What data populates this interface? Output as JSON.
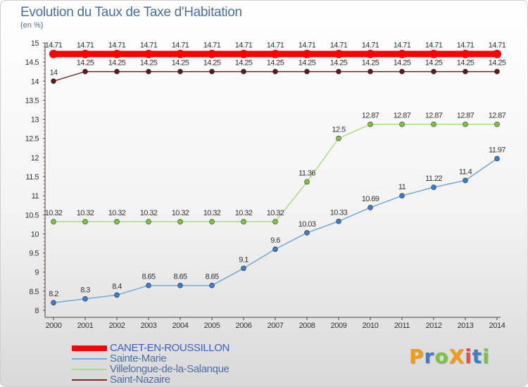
{
  "title": "Evolution du Taux de Taxe d'Habitation",
  "subtitle": "(en %)",
  "logo": {
    "text": "ProXiti",
    "letters": [
      {
        "ch": "P",
        "color": "#f39c12"
      },
      {
        "ch": "r",
        "color": "#3a7dc9"
      },
      {
        "ch": "o",
        "color": "#7cc242"
      },
      {
        "ch": "X",
        "color": "#f39c12"
      },
      {
        "ch": "i",
        "color": "#e74c3c"
      },
      {
        "ch": "t",
        "color": "#3a7dc9"
      },
      {
        "ch": "i",
        "color": "#7cc242"
      }
    ]
  },
  "chart_data": {
    "type": "line",
    "title": "Evolution du Taux de Taxe d'Habitation",
    "subtitle": "(en %)",
    "xlabel": "",
    "ylabel": "",
    "x": [
      "2000",
      "2001",
      "2002",
      "2003",
      "2004",
      "2005",
      "2006",
      "2007",
      "2008",
      "2009",
      "2010",
      "2011",
      "2012",
      "2013",
      "2014"
    ],
    "ylim": [
      8,
      15
    ],
    "yticks": [
      8,
      8.5,
      9,
      9.5,
      10,
      10.5,
      11,
      11.5,
      12,
      12.5,
      13,
      13.5,
      14,
      14.5,
      15
    ],
    "grid": false,
    "legend_position": "bottom-left",
    "series": [
      {
        "name": "CANET-EN-ROUSSILLON",
        "color": "#ff0000",
        "emphasis": true,
        "values": [
          14.71,
          14.71,
          14.71,
          14.71,
          14.71,
          14.71,
          14.71,
          14.71,
          14.71,
          14.71,
          14.71,
          14.71,
          14.71,
          14.71,
          14.71
        ],
        "labels": [
          "14.71",
          "14.71",
          "14.71",
          "14.71",
          "14.71",
          "14.71",
          "14.71",
          "14.71",
          "14.71",
          "14.71",
          "14.71",
          "14.71",
          "14.71",
          "14.71",
          "14.71"
        ]
      },
      {
        "name": "Sainte-Marie",
        "color": "#6fa8dc",
        "marker": "#3a7dc9",
        "values": [
          8.2,
          8.3,
          8.4,
          8.65,
          8.65,
          8.65,
          9.1,
          9.6,
          10.03,
          10.33,
          10.69,
          11,
          11.22,
          11.4,
          11.97
        ],
        "labels": [
          "8.2",
          "8.3",
          "8.4",
          "8.65",
          "8.65",
          "8.65",
          "9.1",
          "9.6",
          "10.03",
          "10.33",
          "10.69",
          "11",
          "11.22",
          "11.4",
          "11.97"
        ]
      },
      {
        "name": "Villelongue-de-la-Salanque",
        "color": "#a9e07c",
        "marker": "#7cc242",
        "values": [
          10.32,
          10.32,
          10.32,
          10.32,
          10.32,
          10.32,
          10.32,
          10.32,
          11.36,
          12.5,
          12.87,
          12.87,
          12.87,
          12.87,
          12.87
        ],
        "labels": [
          "10.32",
          "10.32",
          "10.32",
          "10.32",
          "10.32",
          "10.32",
          "10.32",
          "10.32",
          "11.36",
          "12.5",
          "12.87",
          "12.87",
          "12.87",
          "12.87",
          "12.87"
        ]
      },
      {
        "name": "Saint-Nazaire",
        "color": "#7a2a2a",
        "marker": "#5e1a1a",
        "values": [
          14,
          14.25,
          14.25,
          14.25,
          14.25,
          14.25,
          14.25,
          14.25,
          14.25,
          14.25,
          14.25,
          14.25,
          14.25,
          14.25,
          14.25
        ],
        "labels": [
          "14",
          "14.25",
          "14.25",
          "14.25",
          "14.25",
          "14.25",
          "14.25",
          "14.25",
          "14.25",
          "14.25",
          "14.25",
          "14.25",
          "14.25",
          "14.25",
          "14.25"
        ]
      }
    ]
  }
}
